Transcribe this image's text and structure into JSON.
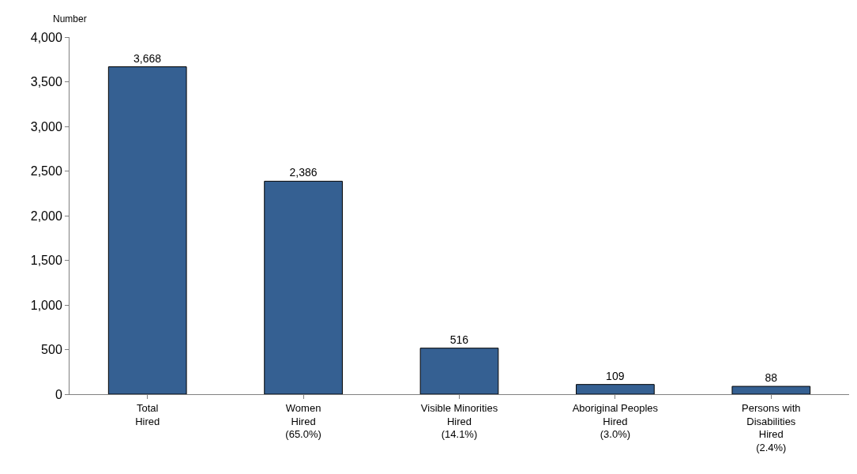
{
  "chart_data": {
    "type": "bar",
    "ylabel": "Number",
    "categories": [
      "Total\nHired",
      "Women\nHired\n(65.0%)",
      "Visible Minorities\nHired\n(14.1%)",
      "Aboriginal Peoples\nHired\n(3.0%)",
      "Persons with\nDisabilities\nHired\n(2.4%)"
    ],
    "values": [
      3668,
      2386,
      516,
      109,
      88
    ],
    "value_labels": [
      "3,668",
      "2,386",
      "516",
      "109",
      "88"
    ],
    "color": "#356092",
    "ylim": [
      0,
      4000
    ],
    "yticks": [
      {
        "value": 0,
        "label": "0"
      },
      {
        "value": 500,
        "label": "500"
      },
      {
        "value": 1000,
        "label": "1,000"
      },
      {
        "value": 1500,
        "label": "1,500"
      },
      {
        "value": 2000,
        "label": "2,000"
      },
      {
        "value": 2500,
        "label": "2,500"
      },
      {
        "value": 3000,
        "label": "3,000"
      },
      {
        "value": 3500,
        "label": "3,500"
      },
      {
        "value": 4000,
        "label": "4,000"
      }
    ],
    "data_labels": false
  }
}
